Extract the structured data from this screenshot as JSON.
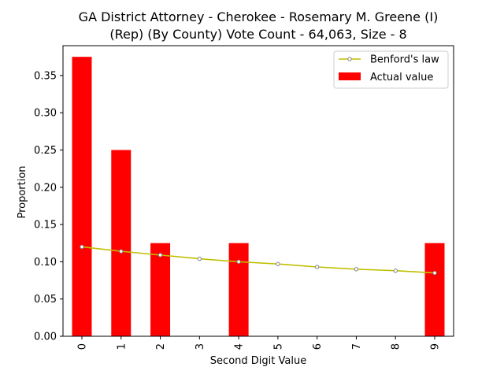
{
  "chart_data": {
    "type": "bar",
    "title_lines": [
      "GA District Attorney - Cherokee - Rosemary M. Greene (I)",
      "(Rep) (By County) Vote Count - 64,063, Size - 8"
    ],
    "xlabel": "Second Digit Value",
    "ylabel": "Proportion",
    "categories": [
      "0",
      "1",
      "2",
      "3",
      "4",
      "5",
      "6",
      "7",
      "8",
      "9"
    ],
    "ylim": [
      0,
      0.39
    ],
    "yticks": [
      "0.00",
      "0.05",
      "0.10",
      "0.15",
      "0.20",
      "0.25",
      "0.30",
      "0.35"
    ],
    "legend_position": "top-right",
    "series": [
      {
        "name": "Actual value",
        "type": "bar",
        "color": "#ff0000",
        "values": [
          0.375,
          0.25,
          0.125,
          0,
          0.125,
          0,
          0,
          0,
          0,
          0.125
        ]
      },
      {
        "name": "Benford's law",
        "type": "line",
        "color": "#bfbf00",
        "marker_edge": "#808080",
        "values": [
          0.12,
          0.114,
          0.109,
          0.104,
          0.1,
          0.097,
          0.093,
          0.09,
          0.088,
          0.085
        ]
      }
    ]
  }
}
